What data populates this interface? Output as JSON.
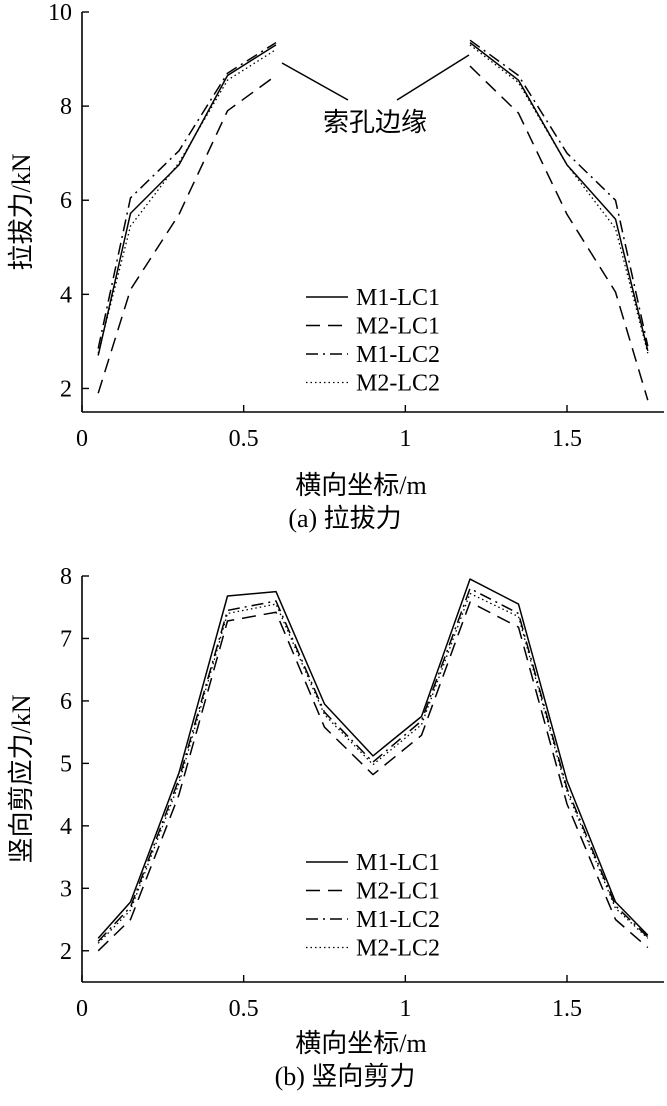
{
  "colors": {
    "ink": "#000000",
    "background": "#ffffff"
  },
  "chart_data": [
    {
      "type": "line",
      "caption": "(a) 拉拔力",
      "xlabel": "横向坐标/m",
      "ylabel": "拉拔力/kN",
      "xlim": [
        0,
        1.8
      ],
      "ylim": [
        1.5,
        10
      ],
      "xticks": [
        0,
        0.5,
        1,
        1.5
      ],
      "xtick_labels": [
        "0",
        "0.5",
        "1",
        "1.5"
      ],
      "yticks": [
        2,
        4,
        6,
        8,
        10
      ],
      "ytick_labels": [
        "2",
        "4",
        "6",
        "8",
        "10"
      ],
      "annotation": "索孔边缘",
      "legend_position": "lower-center",
      "series": [
        {
          "name": "M1-LC1",
          "dash": "solid",
          "segments": [
            [
              [
                0.05,
                2.7
              ],
              [
                0.15,
                5.72
              ],
              [
                0.3,
                6.75
              ],
              [
                0.45,
                8.65
              ],
              [
                0.6,
                9.3
              ]
            ],
            [
              [
                1.2,
                9.35
              ],
              [
                1.35,
                8.55
              ],
              [
                1.5,
                6.75
              ],
              [
                1.65,
                5.6
              ],
              [
                1.75,
                2.8
              ]
            ]
          ]
        },
        {
          "name": "M2-LC1",
          "dash": "dashed",
          "segments": [
            [
              [
                0.05,
                1.9
              ],
              [
                0.15,
                4.1
              ],
              [
                0.3,
                5.7
              ],
              [
                0.45,
                7.9
              ],
              [
                0.6,
                8.65
              ]
            ],
            [
              [
                1.2,
                8.85
              ],
              [
                1.35,
                7.85
              ],
              [
                1.5,
                5.7
              ],
              [
                1.65,
                4.05
              ],
              [
                1.75,
                1.75
              ]
            ]
          ]
        },
        {
          "name": "M1-LC2",
          "dash": "dashdot",
          "segments": [
            [
              [
                0.05,
                2.85
              ],
              [
                0.15,
                6.05
              ],
              [
                0.3,
                7.05
              ],
              [
                0.45,
                8.7
              ],
              [
                0.6,
                9.35
              ]
            ],
            [
              [
                1.2,
                9.4
              ],
              [
                1.35,
                8.65
              ],
              [
                1.5,
                7.0
              ],
              [
                1.65,
                6.0
              ],
              [
                1.75,
                2.9
              ]
            ]
          ]
        },
        {
          "name": "M2-LC2",
          "dash": "dotted",
          "segments": [
            [
              [
                0.05,
                2.75
              ],
              [
                0.15,
                5.45
              ],
              [
                0.3,
                6.8
              ],
              [
                0.45,
                8.55
              ],
              [
                0.6,
                9.2
              ]
            ],
            [
              [
                1.2,
                9.3
              ],
              [
                1.35,
                8.5
              ],
              [
                1.5,
                6.75
              ],
              [
                1.65,
                5.4
              ],
              [
                1.75,
                2.75
              ]
            ]
          ]
        }
      ]
    },
    {
      "type": "line",
      "caption": "(b) 竖向剪力",
      "xlabel": "横向坐标/m",
      "ylabel": "竖向剪应力/kN",
      "xlim": [
        0,
        1.8
      ],
      "ylim": [
        1.5,
        8
      ],
      "xticks": [
        0,
        0.5,
        1,
        1.5
      ],
      "xtick_labels": [
        "0",
        "0.5",
        "1",
        "1.5"
      ],
      "yticks": [
        2,
        3,
        4,
        5,
        6,
        7,
        8
      ],
      "ytick_labels": [
        "2",
        "3",
        "4",
        "5",
        "6",
        "7",
        "8"
      ],
      "legend_position": "lower-center",
      "series": [
        {
          "name": "M1-LC1",
          "dash": "solid",
          "segments": [
            [
              [
                0.05,
                2.2
              ],
              [
                0.15,
                2.78
              ],
              [
                0.3,
                4.85
              ],
              [
                0.45,
                7.68
              ],
              [
                0.6,
                7.75
              ],
              [
                0.75,
                5.95
              ],
              [
                0.9,
                5.12
              ],
              [
                1.05,
                5.75
              ],
              [
                1.2,
                7.95
              ],
              [
                1.35,
                7.55
              ],
              [
                1.5,
                4.72
              ],
              [
                1.65,
                2.78
              ],
              [
                1.75,
                2.25
              ]
            ]
          ]
        },
        {
          "name": "M2-LC1",
          "dash": "dashed",
          "segments": [
            [
              [
                0.05,
                2.0
              ],
              [
                0.15,
                2.5
              ],
              [
                0.3,
                4.5
              ],
              [
                0.45,
                7.28
              ],
              [
                0.6,
                7.42
              ],
              [
                0.75,
                5.58
              ],
              [
                0.9,
                4.82
              ],
              [
                1.05,
                5.45
              ],
              [
                1.2,
                7.58
              ],
              [
                1.35,
                7.18
              ],
              [
                1.5,
                4.35
              ],
              [
                1.65,
                2.5
              ],
              [
                1.75,
                2.05
              ]
            ]
          ]
        },
        {
          "name": "M1-LC2",
          "dash": "dashdot",
          "segments": [
            [
              [
                0.05,
                2.15
              ],
              [
                0.15,
                2.7
              ],
              [
                0.3,
                4.75
              ],
              [
                0.45,
                7.45
              ],
              [
                0.6,
                7.6
              ],
              [
                0.75,
                5.82
              ],
              [
                0.9,
                5.02
              ],
              [
                1.05,
                5.68
              ],
              [
                1.2,
                7.8
              ],
              [
                1.35,
                7.4
              ],
              [
                1.5,
                4.6
              ],
              [
                1.65,
                2.72
              ],
              [
                1.75,
                2.22
              ]
            ]
          ]
        },
        {
          "name": "M2-LC2",
          "dash": "dotted",
          "segments": [
            [
              [
                0.05,
                2.12
              ],
              [
                0.15,
                2.65
              ],
              [
                0.3,
                4.68
              ],
              [
                0.45,
                7.4
              ],
              [
                0.6,
                7.55
              ],
              [
                0.75,
                5.78
              ],
              [
                0.9,
                4.98
              ],
              [
                1.05,
                5.62
              ],
              [
                1.2,
                7.72
              ],
              [
                1.35,
                7.35
              ],
              [
                1.5,
                4.55
              ],
              [
                1.65,
                2.68
              ],
              [
                1.75,
                2.2
              ]
            ]
          ]
        }
      ]
    }
  ]
}
